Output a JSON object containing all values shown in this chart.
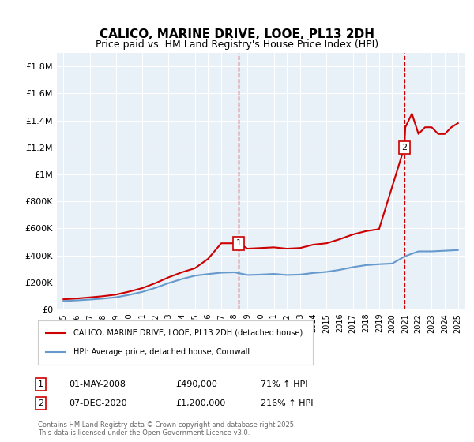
{
  "title": "CALICO, MARINE DRIVE, LOOE, PL13 2DH",
  "subtitle": "Price paid vs. HM Land Registry's House Price Index (HPI)",
  "ylabel_ticks": [
    "£0",
    "£200K",
    "£400K",
    "£600K",
    "£800K",
    "£1M",
    "£1.2M",
    "£1.4M",
    "£1.6M",
    "£1.8M"
  ],
  "ylim": [
    0,
    1900000
  ],
  "ytick_vals": [
    0,
    200000,
    400000,
    600000,
    800000,
    1000000,
    1200000,
    1400000,
    1600000,
    1800000
  ],
  "xlim_start": 1994.5,
  "xlim_end": 2025.5,
  "xticks": [
    1995,
    1996,
    1997,
    1998,
    1999,
    2000,
    2001,
    2002,
    2003,
    2004,
    2005,
    2006,
    2007,
    2008,
    2009,
    2010,
    2011,
    2012,
    2013,
    2014,
    2015,
    2016,
    2017,
    2018,
    2019,
    2020,
    2021,
    2022,
    2023,
    2024,
    2025
  ],
  "bg_color": "#e8f0f8",
  "grid_color": "#ffffff",
  "red_line_color": "#cc0000",
  "blue_line_color": "#6699cc",
  "marker1_x": 2008.33,
  "marker1_y": 490000,
  "marker1_label": "1",
  "marker1_date": "01-MAY-2008",
  "marker1_price": "£490,000",
  "marker1_hpi": "71% ↑ HPI",
  "marker2_x": 2020.92,
  "marker2_y": 1200000,
  "marker2_label": "2",
  "marker2_date": "07-DEC-2020",
  "marker2_price": "£1,200,000",
  "marker2_hpi": "216% ↑ HPI",
  "legend_line1": "CALICO, MARINE DRIVE, LOOE, PL13 2DH (detached house)",
  "legend_line2": "HPI: Average price, detached house, Cornwall",
  "footer": "Contains HM Land Registry data © Crown copyright and database right 2025.\nThis data is licensed under the Open Government Licence v3.0.",
  "hpi_x": [
    1995,
    1996,
    1997,
    1998,
    1999,
    2000,
    2001,
    2002,
    2003,
    2004,
    2005,
    2006,
    2007,
    2008,
    2009,
    2010,
    2011,
    2012,
    2013,
    2014,
    2015,
    2016,
    2017,
    2018,
    2019,
    2020,
    2021,
    2022,
    2023,
    2024,
    2025
  ],
  "hpi_y": [
    62000,
    67000,
    73000,
    80000,
    90000,
    108000,
    130000,
    160000,
    195000,
    225000,
    250000,
    262000,
    272000,
    275000,
    255000,
    258000,
    263000,
    255000,
    258000,
    270000,
    278000,
    293000,
    313000,
    328000,
    335000,
    340000,
    395000,
    430000,
    430000,
    435000,
    440000
  ],
  "red_x": [
    1995.0,
    1996.0,
    1997.0,
    1998.0,
    1999.0,
    2000.0,
    2001.0,
    2002.0,
    2003.0,
    2004.0,
    2005.0,
    2006.0,
    2007.0,
    2008.33,
    2009.0,
    2010.0,
    2011.0,
    2012.0,
    2013.0,
    2014.0,
    2015.0,
    2016.0,
    2017.0,
    2018.0,
    2019.0,
    2020.92,
    2021.0,
    2021.5,
    2022.0,
    2022.5,
    2023.0,
    2023.5,
    2024.0,
    2024.5,
    2025.0
  ],
  "red_y": [
    75000,
    81000,
    89000,
    98000,
    110000,
    132000,
    158000,
    195000,
    238000,
    275000,
    305000,
    375000,
    490000,
    490000,
    450000,
    455000,
    460000,
    450000,
    455000,
    480000,
    490000,
    520000,
    555000,
    580000,
    595000,
    1200000,
    1350000,
    1450000,
    1300000,
    1350000,
    1350000,
    1300000,
    1300000,
    1350000,
    1380000
  ]
}
